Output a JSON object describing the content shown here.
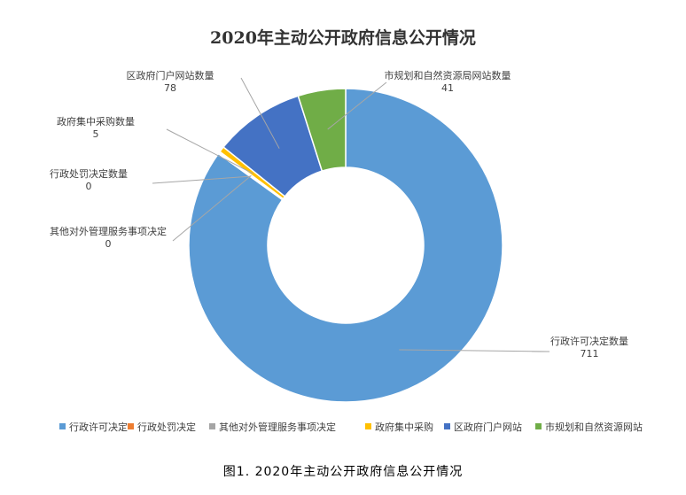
{
  "chart_data": {
    "type": "pie",
    "variant": "donut",
    "title": "2020年主动公开政府信息公开情况",
    "categories": [
      "行政许可决定",
      "行政处罚决定",
      "其他对外管理服务事项决定",
      "政府集中采购",
      "区政府门户网站",
      "市规划和自然资源网站"
    ],
    "callout_labels": [
      "行政许可决定数量",
      "行政处罚决定数量",
      "其他对外管理服务事项决定",
      "政府集中采购数量",
      "区政府门户网站数量",
      "市规划和自然资源局网站数量"
    ],
    "values": [
      711,
      0,
      0,
      5,
      78,
      41
    ],
    "colors": [
      "#5B9BD5",
      "#ED7D31",
      "#A5A5A5",
      "#FFC000",
      "#4472C4",
      "#70AD47"
    ],
    "legend_position": "bottom",
    "start_angle_deg": 0,
    "direction": "clockwise"
  },
  "caption": "图1. 2020年主动公开政府信息公开情况"
}
